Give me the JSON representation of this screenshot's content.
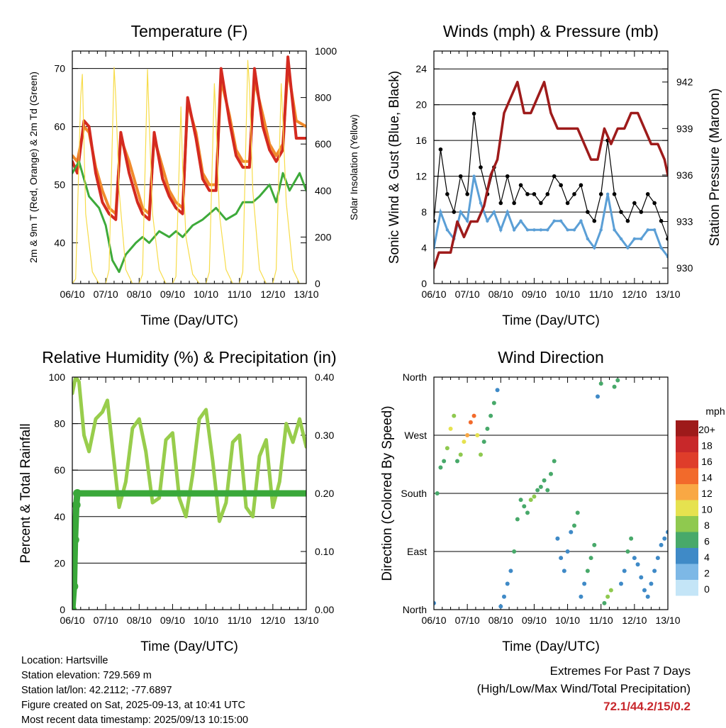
{
  "chart_data": [
    {
      "id": "temperature",
      "type": "line",
      "title": "Temperature (F)",
      "xlabel": "Time (Day/UTC)",
      "ylabel": "2m & 9m T (Red, Orange) & 2m Td (Green)",
      "y2label": "Solar Insolation (Yellow)",
      "xticks": [
        "06/10",
        "07/10",
        "08/10",
        "09/10",
        "10/10",
        "11/10",
        "12/10",
        "13/10"
      ],
      "xlim": [
        0,
        7
      ],
      "ylim": [
        33,
        73
      ],
      "yticks": [
        40,
        50,
        60,
        70
      ],
      "y2lim": [
        0,
        1000
      ],
      "y2ticks": [
        0,
        200,
        400,
        600,
        800,
        1000
      ],
      "grid": true,
      "series": [
        {
          "color": "#f08a2c",
          "axis": "left",
          "x": [
            0.0,
            0.15,
            0.35,
            0.5,
            0.7,
            0.9,
            1.1,
            1.3,
            1.45,
            1.7,
            1.95,
            2.1,
            2.3,
            2.45,
            2.7,
            2.9,
            3.1,
            3.3,
            3.45,
            3.7,
            3.9,
            4.1,
            4.3,
            4.45,
            4.7,
            4.9,
            5.1,
            5.3,
            5.45,
            5.7,
            5.9,
            6.1,
            6.3,
            6.45,
            6.7,
            7.0
          ],
          "y": [
            55,
            54,
            60,
            59,
            53,
            49,
            46,
            45,
            58,
            54,
            49,
            46,
            45,
            58,
            53,
            49,
            47,
            46,
            64,
            59,
            52,
            50,
            50,
            68,
            62,
            56,
            54,
            54,
            68,
            62,
            57,
            55,
            57,
            70,
            61,
            60
          ]
        },
        {
          "color": "#d42a20",
          "axis": "left",
          "x": [
            0.0,
            0.15,
            0.35,
            0.5,
            0.7,
            0.9,
            1.1,
            1.3,
            1.45,
            1.7,
            1.95,
            2.1,
            2.3,
            2.45,
            2.7,
            2.9,
            3.1,
            3.3,
            3.45,
            3.7,
            3.9,
            4.1,
            4.3,
            4.45,
            4.7,
            4.9,
            5.1,
            5.3,
            5.45,
            5.7,
            5.9,
            6.1,
            6.3,
            6.45,
            6.7,
            7.0
          ],
          "y": [
            54,
            52,
            61,
            60,
            52,
            47,
            45,
            44,
            59,
            52,
            47,
            45,
            44,
            59,
            51,
            48,
            46,
            45,
            65,
            58,
            51,
            49,
            49,
            70,
            61,
            55,
            53,
            53,
            70,
            60,
            56,
            54,
            56,
            72,
            58,
            58
          ]
        },
        {
          "color": "#3daa3a",
          "axis": "left",
          "x": [
            0.0,
            0.2,
            0.35,
            0.5,
            0.8,
            1.0,
            1.2,
            1.4,
            1.6,
            1.9,
            2.1,
            2.3,
            2.6,
            2.9,
            3.1,
            3.3,
            3.6,
            3.9,
            4.1,
            4.3,
            4.6,
            4.9,
            5.1,
            5.4,
            5.6,
            5.9,
            6.1,
            6.3,
            6.5,
            6.8,
            7.0
          ],
          "y": [
            52,
            54,
            51,
            48,
            46,
            43,
            37,
            35,
            38,
            40,
            41,
            40,
            42,
            41,
            42,
            41,
            43,
            44,
            45,
            46,
            44,
            45,
            47,
            47,
            48,
            50,
            47,
            52,
            49,
            52,
            49
          ]
        },
        {
          "color": "#f7dc4a",
          "axis": "right",
          "x": [
            0.0,
            0.1,
            0.25,
            0.3,
            0.4,
            0.6,
            0.8,
            1.0,
            1.1,
            1.25,
            1.3,
            1.4,
            1.6,
            1.8,
            2.0,
            2.1,
            2.25,
            2.3,
            2.4,
            2.6,
            2.8,
            3.0,
            3.1,
            3.25,
            3.3,
            3.4,
            3.6,
            3.8,
            4.0,
            4.1,
            4.25,
            4.3,
            4.4,
            4.6,
            4.8,
            5.0,
            5.1,
            5.25,
            5.3,
            5.4,
            5.6,
            5.8,
            6.0,
            6.1,
            6.25,
            6.3,
            6.4,
            6.6,
            6.8,
            7.0
          ],
          "y": [
            0,
            20,
            800,
            900,
            300,
            50,
            0,
            0,
            60,
            930,
            800,
            400,
            60,
            0,
            0,
            40,
            920,
            700,
            300,
            60,
            0,
            0,
            30,
            760,
            500,
            200,
            40,
            0,
            0,
            50,
            860,
            700,
            300,
            60,
            0,
            0,
            50,
            960,
            850,
            400,
            60,
            0,
            0,
            60,
            860,
            700,
            350,
            60,
            0,
            0
          ]
        }
      ]
    },
    {
      "id": "winds",
      "type": "scatter",
      "title": "Winds (mph) & Pressure (mb)",
      "xlabel": "Time (Day/UTC)",
      "ylabel": "Sonic Wind & Gust (Blue, Black)",
      "y2label": "Station Pressure (Maroon)",
      "xticks": [
        "06/10",
        "07/10",
        "08/10",
        "09/10",
        "10/10",
        "11/10",
        "12/10",
        "13/10"
      ],
      "xlim": [
        0,
        7
      ],
      "ylim": [
        0,
        26
      ],
      "yticks": [
        0,
        4,
        8,
        12,
        16,
        20,
        24
      ],
      "y2lim": [
        929,
        944
      ],
      "y2ticks": [
        930,
        933,
        936,
        939,
        942
      ],
      "grid": true,
      "series": [
        {
          "color": "#000000",
          "kind": "gust",
          "x": [
            0.0,
            0.2,
            0.4,
            0.6,
            0.8,
            1.0,
            1.2,
            1.4,
            1.6,
            1.8,
            2.0,
            2.2,
            2.4,
            2.6,
            2.8,
            3.0,
            3.2,
            3.4,
            3.6,
            3.8,
            4.0,
            4.2,
            4.4,
            4.6,
            4.8,
            5.0,
            5.2,
            5.4,
            5.6,
            5.8,
            6.0,
            6.2,
            6.4,
            6.6,
            6.8,
            7.0
          ],
          "y": [
            7,
            15,
            10,
            8,
            12,
            10,
            19,
            13,
            10,
            13,
            9,
            12,
            9,
            11,
            10,
            10,
            9,
            10,
            12,
            11,
            9,
            10,
            11,
            8,
            7,
            10,
            16,
            10,
            8,
            7,
            9,
            8,
            10,
            9,
            7,
            5
          ]
        },
        {
          "color": "#5b9fd6",
          "kind": "wind",
          "x": [
            0.0,
            0.2,
            0.4,
            0.6,
            0.8,
            1.0,
            1.2,
            1.4,
            1.6,
            1.8,
            2.0,
            2.2,
            2.4,
            2.6,
            2.8,
            3.0,
            3.2,
            3.4,
            3.6,
            3.8,
            4.0,
            4.2,
            4.4,
            4.6,
            4.8,
            5.0,
            5.2,
            5.4,
            5.6,
            5.8,
            6.0,
            6.2,
            6.4,
            6.6,
            6.8,
            7.0
          ],
          "y": [
            4,
            8,
            6,
            5,
            8,
            7,
            12,
            9,
            7,
            8,
            6,
            8,
            6,
            7,
            6,
            6,
            6,
            6,
            7,
            7,
            6,
            6,
            7,
            5,
            4,
            6,
            10,
            6,
            5,
            4,
            5,
            5,
            6,
            6,
            4,
            3
          ]
        },
        {
          "color": "#9e1b1b",
          "kind": "pressure",
          "axis": "right",
          "x": [
            0.0,
            0.15,
            0.3,
            0.5,
            0.7,
            0.9,
            1.1,
            1.3,
            1.5,
            1.7,
            1.9,
            2.1,
            2.3,
            2.5,
            2.7,
            2.9,
            3.1,
            3.3,
            3.5,
            3.7,
            3.9,
            4.1,
            4.3,
            4.5,
            4.7,
            4.9,
            5.1,
            5.3,
            5.5,
            5.7,
            5.9,
            6.1,
            6.3,
            6.5,
            6.7,
            6.9,
            7.0
          ],
          "y": [
            930,
            931,
            931,
            931,
            933,
            932,
            933,
            933,
            934,
            936,
            937,
            940,
            941,
            942,
            940,
            940,
            941,
            942,
            940,
            939,
            939,
            939,
            939,
            938,
            937,
            937,
            939,
            938,
            939,
            939,
            940,
            940,
            939,
            938,
            938,
            937,
            936
          ]
        }
      ]
    },
    {
      "id": "humidity",
      "type": "line",
      "title": "Relative Humidity (%) & Precipitation (in)",
      "xlabel": "Time (Day/UTC)",
      "ylabel": "Percent & Total Rainfall",
      "xticks": [
        "06/10",
        "07/10",
        "08/10",
        "09/10",
        "10/10",
        "11/10",
        "12/10",
        "13/10"
      ],
      "xlim": [
        0,
        7
      ],
      "ylim": [
        0,
        100
      ],
      "yticks": [
        0,
        20,
        40,
        60,
        80,
        100
      ],
      "y2lim": [
        0,
        0.4
      ],
      "y2ticks": [
        "0.00",
        "0.10",
        "0.20",
        "0.30",
        "0.40"
      ],
      "grid": true,
      "series": [
        {
          "color": "#98cd4c",
          "kind": "rh",
          "x": [
            0.0,
            0.1,
            0.2,
            0.35,
            0.5,
            0.7,
            0.9,
            1.05,
            1.2,
            1.4,
            1.6,
            1.8,
            2.0,
            2.2,
            2.4,
            2.6,
            2.8,
            3.0,
            3.2,
            3.4,
            3.6,
            3.8,
            4.0,
            4.2,
            4.4,
            4.6,
            4.8,
            5.0,
            5.2,
            5.4,
            5.6,
            5.8,
            6.0,
            6.2,
            6.4,
            6.6,
            6.8,
            7.0
          ],
          "y": [
            93,
            100,
            98,
            75,
            68,
            82,
            85,
            90,
            70,
            44,
            55,
            78,
            82,
            68,
            46,
            48,
            73,
            76,
            48,
            40,
            58,
            82,
            86,
            64,
            38,
            46,
            72,
            75,
            44,
            40,
            66,
            73,
            44,
            55,
            80,
            72,
            82,
            70
          ]
        },
        {
          "color": "#3aa83a",
          "kind": "precip",
          "axis": "right",
          "x": [
            0.0,
            0.05,
            0.08,
            0.12,
            0.15,
            1.0,
            2.0,
            3.0,
            4.0,
            5.0,
            6.0,
            7.0
          ],
          "y": [
            0.0,
            0.04,
            0.12,
            0.18,
            0.2,
            0.2,
            0.2,
            0.2,
            0.2,
            0.2,
            0.2,
            0.2
          ]
        }
      ]
    },
    {
      "id": "direction",
      "type": "scatter",
      "title": "Wind Direction",
      "xlabel": "Time (Day/UTC)",
      "ylabel": "Direction (Colored By Speed)",
      "xticks": [
        "06/10",
        "07/10",
        "08/10",
        "09/10",
        "10/10",
        "11/10",
        "12/10",
        "13/10"
      ],
      "xlim": [
        0,
        7
      ],
      "ylim": [
        0,
        360
      ],
      "yticks": [
        "North",
        "East",
        "South",
        "West",
        "North"
      ],
      "grid": true,
      "legend": {
        "title": "mph",
        "labels": [
          "20+",
          "18",
          "16",
          "14",
          "12",
          "10",
          "8",
          "6",
          "4",
          "2",
          "0"
        ],
        "colors": [
          "#9e1a1a",
          "#c8282a",
          "#df3d2a",
          "#f26a2b",
          "#f9a844",
          "#e6e24f",
          "#8fc94f",
          "#48a96a",
          "#3f8ac7",
          "#7db8e6",
          "#c4e5f7"
        ]
      },
      "points": [
        {
          "x": [
            0.0,
            0.1,
            0.2,
            0.3,
            0.4,
            0.5,
            0.6,
            0.7,
            0.8,
            0.9,
            1.0,
            1.1,
            1.2,
            1.3,
            1.4,
            1.5,
            1.6,
            1.7,
            1.8,
            1.9,
            2.0,
            2.1,
            2.2,
            2.3,
            2.4,
            2.5,
            2.6,
            2.7,
            2.8,
            2.9,
            3.0,
            3.1,
            3.2,
            3.3,
            3.4,
            3.5,
            3.6,
            3.7,
            3.8,
            3.9,
            4.0,
            4.1,
            4.2,
            4.3,
            4.4,
            4.5,
            4.6,
            4.7,
            4.8,
            4.9,
            5.0,
            5.1,
            5.2,
            5.3,
            5.4,
            5.5,
            5.6,
            5.7,
            5.8,
            5.9,
            6.0,
            6.1,
            6.2,
            6.3,
            6.4,
            6.5,
            6.6,
            6.7,
            6.8,
            6.9,
            7.0
          ],
          "y": [
            10,
            180,
            220,
            230,
            250,
            280,
            300,
            230,
            240,
            260,
            270,
            290,
            300,
            270,
            240,
            260,
            280,
            300,
            320,
            340,
            5,
            20,
            40,
            60,
            90,
            140,
            170,
            160,
            150,
            170,
            175,
            185,
            190,
            200,
            185,
            210,
            230,
            110,
            80,
            60,
            90,
            120,
            130,
            150,
            20,
            40,
            60,
            80,
            100,
            330,
            350,
            10,
            20,
            30,
            345,
            355,
            40,
            60,
            90,
            110,
            80,
            70,
            50,
            30,
            20,
            40,
            60,
            80,
            100,
            110,
            120
          ],
          "speed": [
            3,
            5,
            6,
            5,
            8,
            9,
            7,
            6,
            8,
            10,
            12,
            14,
            13,
            9,
            7,
            6,
            5,
            5,
            6,
            4,
            4,
            3,
            4,
            4,
            5,
            6,
            6,
            5,
            6,
            7,
            7,
            6,
            5,
            6,
            5,
            6,
            5,
            4,
            4,
            3,
            3,
            4,
            5,
            6,
            3,
            4,
            5,
            5,
            6,
            4,
            5,
            6,
            7,
            8,
            6,
            5,
            4,
            4,
            5,
            5,
            4,
            4,
            4,
            3,
            3,
            3,
            4,
            4,
            4,
            4,
            3
          ]
        }
      ]
    }
  ],
  "info": {
    "location": "Location: Hartsville",
    "elevation": "Station elevation: 729.569 m",
    "latlon": "Station lat/lon: 42.2112; -77.6897",
    "created": "Figure created on Sat, 2025-09-13, at 10:41 UTC",
    "recent": "Most recent data timestamp: 2025/09/13 10:15:00"
  },
  "extremes": {
    "line1": "Extremes For Past 7 Days",
    "line2": "(High/Low/Max Wind/Total Precipitation)",
    "values": "72.1/44.2/15/0.2"
  }
}
